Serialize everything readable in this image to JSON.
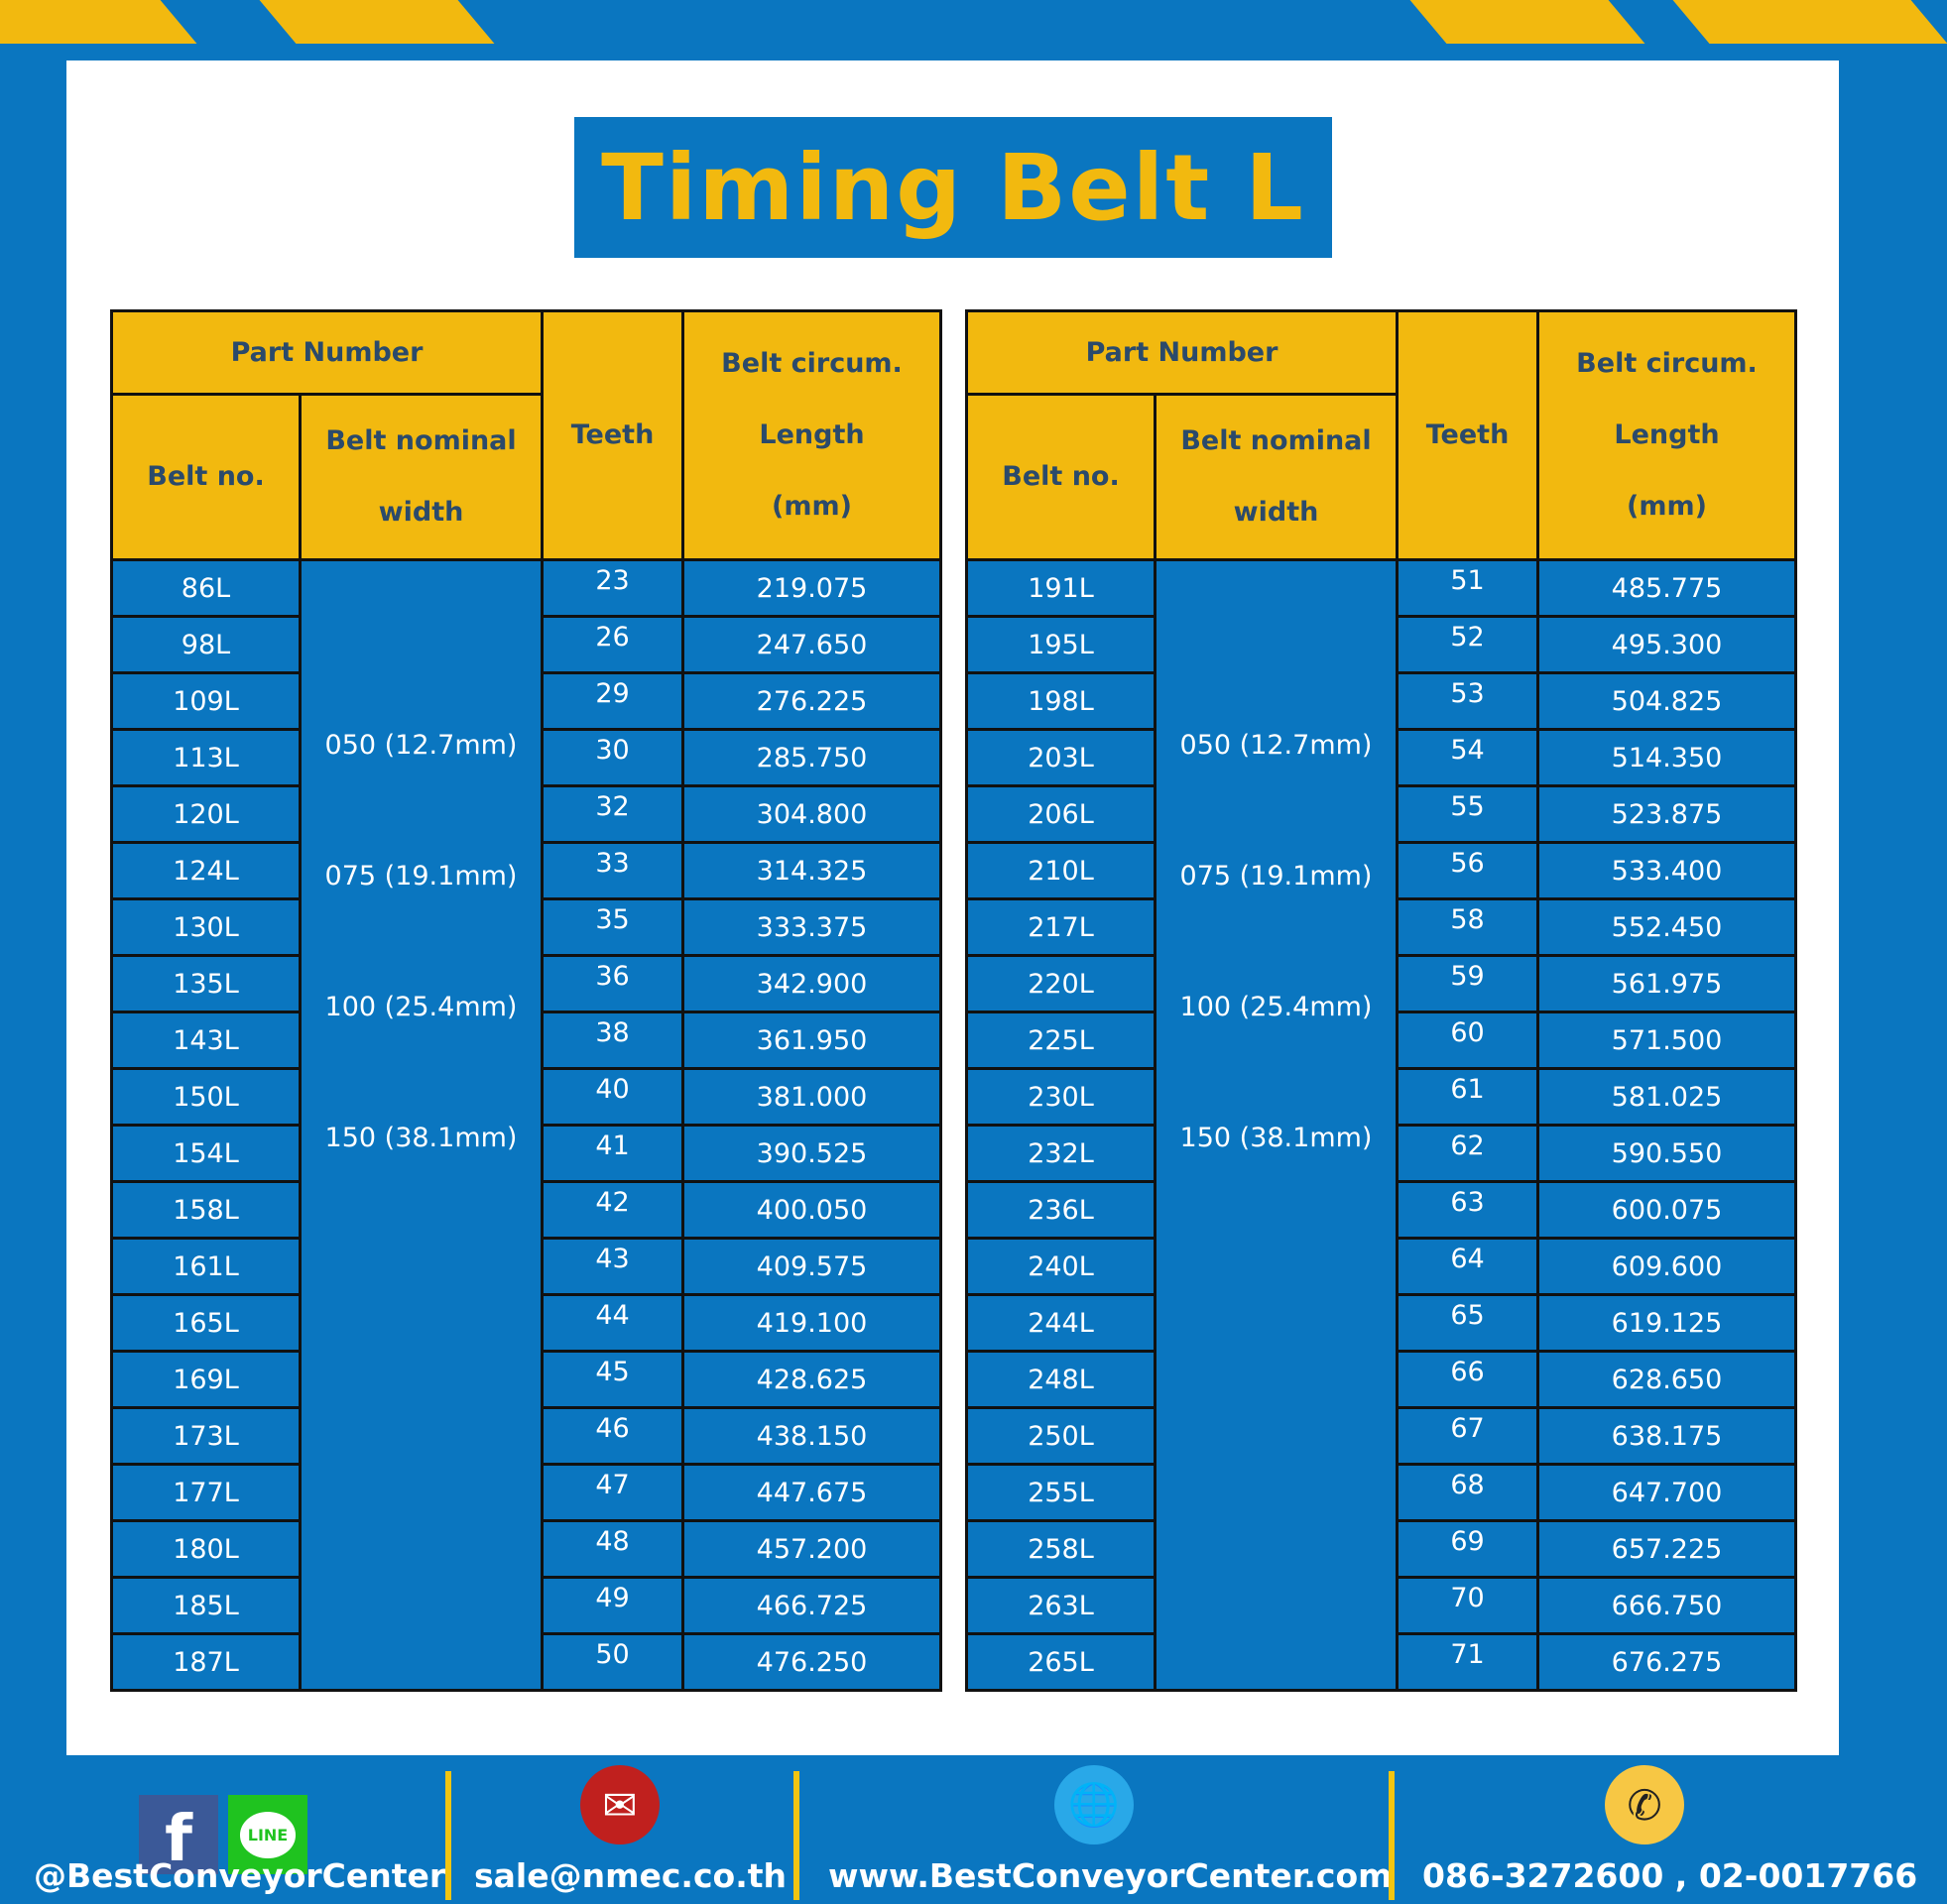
{
  "title": "Timing Belt L",
  "headers": {
    "part_number": "Part Number",
    "belt_no": "Belt no.",
    "nominal_width_1": "Belt nominal",
    "nominal_width_2": "width",
    "teeth": "Teeth",
    "circum_1": "Belt circum.",
    "circum_2": "Length",
    "circum_3": "(mm)"
  },
  "widths": [
    "050 (12.7mm)",
    "075 (19.1mm)",
    "100 (25.4mm)",
    "150 (38.1mm)"
  ],
  "left_rows": [
    [
      "86L",
      "23",
      "219.075"
    ],
    [
      "98L",
      "26",
      "247.650"
    ],
    [
      "109L",
      "29",
      "276.225"
    ],
    [
      "113L",
      "30",
      "285.750"
    ],
    [
      "120L",
      "32",
      "304.800"
    ],
    [
      "124L",
      "33",
      "314.325"
    ],
    [
      "130L",
      "35",
      "333.375"
    ],
    [
      "135L",
      "36",
      "342.900"
    ],
    [
      "143L",
      "38",
      "361.950"
    ],
    [
      "150L",
      "40",
      "381.000"
    ],
    [
      "154L",
      "41",
      "390.525"
    ],
    [
      "158L",
      "42",
      "400.050"
    ],
    [
      "161L",
      "43",
      "409.575"
    ],
    [
      "165L",
      "44",
      "419.100"
    ],
    [
      "169L",
      "45",
      "428.625"
    ],
    [
      "173L",
      "46",
      "438.150"
    ],
    [
      "177L",
      "47",
      "447.675"
    ],
    [
      "180L",
      "48",
      "457.200"
    ],
    [
      "185L",
      "49",
      "466.725"
    ],
    [
      "187L",
      "50",
      "476.250"
    ]
  ],
  "right_rows": [
    [
      "191L",
      "51",
      "485.775"
    ],
    [
      "195L",
      "52",
      "495.300"
    ],
    [
      "198L",
      "53",
      "504.825"
    ],
    [
      "203L",
      "54",
      "514.350"
    ],
    [
      "206L",
      "55",
      "523.875"
    ],
    [
      "210L",
      "56",
      "533.400"
    ],
    [
      "217L",
      "58",
      "552.450"
    ],
    [
      "220L",
      "59",
      "561.975"
    ],
    [
      "225L",
      "60",
      "571.500"
    ],
    [
      "230L",
      "61",
      "581.025"
    ],
    [
      "232L",
      "62",
      "590.550"
    ],
    [
      "236L",
      "63",
      "600.075"
    ],
    [
      "240L",
      "64",
      "609.600"
    ],
    [
      "244L",
      "65",
      "619.125"
    ],
    [
      "248L",
      "66",
      "628.650"
    ],
    [
      "250L",
      "67",
      "638.175"
    ],
    [
      "255L",
      "68",
      "647.700"
    ],
    [
      "258L",
      "69",
      "657.225"
    ],
    [
      "263L",
      "70",
      "666.750"
    ],
    [
      "265L",
      "71",
      "676.275"
    ]
  ],
  "footer": {
    "social": "@BestConveyorCenter",
    "email": "sale@nmec.co.th",
    "website": "www.BestConveyorCenter.com",
    "phone": "086-3272600 , 02-0017766",
    "line_label": "LINE"
  },
  "colors": {
    "blue": "#0a76c0",
    "yellow": "#f2b90f",
    "header_text": "#2b4a6b"
  }
}
